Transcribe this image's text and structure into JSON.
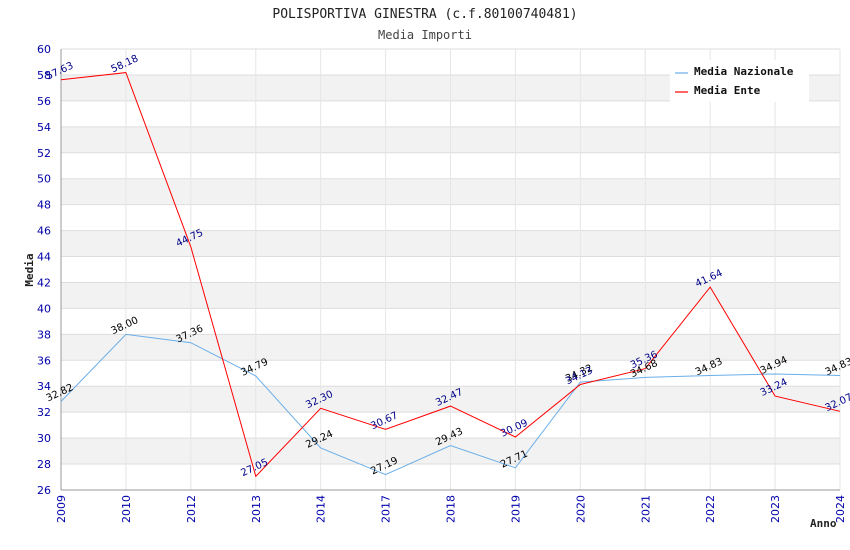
{
  "chart_data": {
    "type": "line",
    "title": "POLISPORTIVA GINESTRA (c.f.80100740481)",
    "subtitle": "Media Importi",
    "xlabel": "Anno",
    "ylabel": "Media",
    "categories": [
      "2009",
      "2010",
      "2012",
      "2013",
      "2014",
      "2017",
      "2018",
      "2019",
      "2020",
      "2021",
      "2022",
      "2023",
      "2024"
    ],
    "ylim": [
      26,
      60
    ],
    "ytick_step": 2,
    "grid": true,
    "legend_position": "top-right",
    "series": [
      {
        "name": "Media Nazionale",
        "color": "#6aaee8",
        "label_color": "#000000",
        "values": [
          32.82,
          38.0,
          37.36,
          34.79,
          29.24,
          27.19,
          29.43,
          27.71,
          34.32,
          34.68,
          34.83,
          34.94,
          34.83
        ],
        "labels": [
          "32.82",
          "38.00",
          "37.36",
          "34.79",
          "29.24",
          "27.19",
          "29.43",
          "27.71",
          "34.32",
          "34.68",
          "34.83",
          "34.94",
          "34.83"
        ]
      },
      {
        "name": "Media Ente",
        "color": "#ff0000",
        "label_color": "#000088",
        "values": [
          57.63,
          58.18,
          44.75,
          27.05,
          32.3,
          30.67,
          32.47,
          30.09,
          34.13,
          35.36,
          41.64,
          33.24,
          32.07
        ],
        "labels": [
          "57.63",
          "58.18",
          "44.75",
          "27.05",
          "32.30",
          "30.67",
          "32.47",
          "30.09",
          "34.13",
          "35.36",
          "41.64",
          "33.24",
          "32.07"
        ]
      }
    ]
  }
}
